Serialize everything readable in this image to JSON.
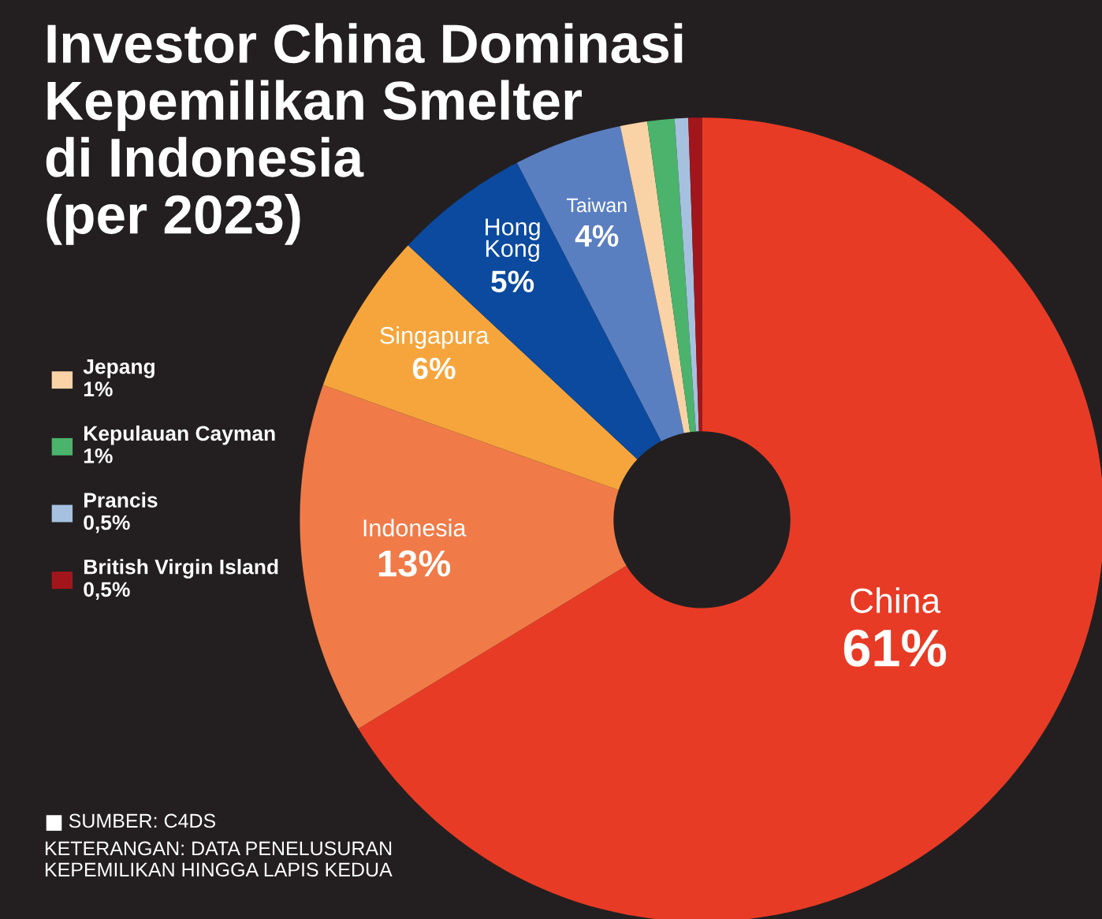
{
  "chart_data": {
    "type": "donut",
    "title": "Investor China Dominasi\nKepemilikan Smelter\ndi Indonesia\n(per 2023)",
    "categories": [
      "China",
      "Indonesia",
      "Singapura",
      "Hong Kong",
      "Taiwan",
      "Jepang",
      "Kepulauan Cayman",
      "Prancis",
      "British Virgin Island"
    ],
    "values": [
      61,
      13,
      6,
      5,
      4,
      1,
      1,
      0.5,
      0.5
    ],
    "value_labels": [
      "61%",
      "13%",
      "6%",
      "5%",
      "4%",
      "1%",
      "1%",
      "0,5%",
      "0,5%"
    ],
    "colors": [
      "#e83b25",
      "#f07b48",
      "#f6a53c",
      "#0b4a9e",
      "#5a7fc1",
      "#f9d3a6",
      "#4bb36b",
      "#a6c1e0",
      "#a2161b"
    ],
    "legend": "left",
    "annotations": [
      "SUMBER: C4DS",
      "KETERANGAN: DATA PENELUSURAN\nKEPEMILIKAN HINGGA LAPIS KEDUA"
    ]
  }
}
